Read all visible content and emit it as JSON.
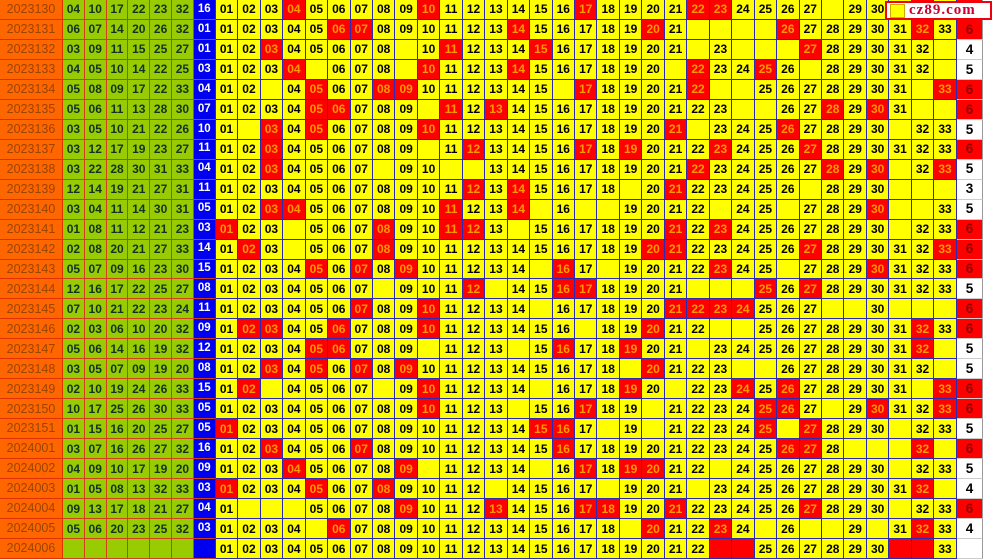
{
  "brand": {
    "logo_text": "cz89.com"
  },
  "colors": {
    "period_bg": "#ff6600",
    "period_text": "#994400",
    "ball_bg": "#99cc00",
    "ball_text": "#113322",
    "blue_bg": "#0000f0",
    "blue_text": "#ffffff",
    "grid_bg": "#ffff00",
    "grid_text": "#000000",
    "grid_border": "#2a2ab8",
    "hit_bg": "#ff0000",
    "hit_text": "#ff9900",
    "count_hot_bg": "#ff0000",
    "count_hot_text": "#8b0000",
    "left_border": "#e03000"
  },
  "chart_data": {
    "type": "table",
    "title": "",
    "number_range": [
      1,
      33
    ],
    "cell_states": {
      "n": "yellow cell showing its column number",
      "red": "red cell (number drawn this period, orange digits)",
      "blank": "empty yellow cell (marked miss)",
      "red_blank": "empty red cell (pending-draw row marker)"
    },
    "rows": [
      {
        "period": "2023130",
        "balls": [
          "04",
          "10",
          "17",
          "22",
          "23",
          "32"
        ],
        "blue": "16",
        "reds": [
          4,
          10,
          17,
          22,
          23,
          32
        ],
        "blanks": [
          28
        ],
        "red_blanks": [],
        "count": "6",
        "count_red": true
      },
      {
        "period": "2023131",
        "balls": [
          "06",
          "07",
          "14",
          "20",
          "26",
          "32"
        ],
        "blue": "01",
        "reds": [
          6,
          7,
          14,
          20,
          26,
          32
        ],
        "blanks": [
          22,
          23,
          24,
          25
        ],
        "red_blanks": [],
        "count": "6",
        "count_red": true
      },
      {
        "period": "2023132",
        "balls": [
          "03",
          "09",
          "11",
          "15",
          "25",
          "27"
        ],
        "blue": "01",
        "reds": [
          3,
          11,
          15,
          27
        ],
        "blanks": [
          9,
          22,
          24,
          25,
          26,
          33
        ],
        "red_blanks": [],
        "count": "4",
        "count_red": false
      },
      {
        "period": "2023133",
        "balls": [
          "04",
          "05",
          "10",
          "14",
          "22",
          "25"
        ],
        "blue": "03",
        "reds": [
          4,
          10,
          14,
          22,
          25
        ],
        "blanks": [
          5,
          9,
          21,
          27,
          33
        ],
        "red_blanks": [],
        "count": "5",
        "count_red": false
      },
      {
        "period": "2023134",
        "balls": [
          "05",
          "08",
          "09",
          "17",
          "22",
          "33"
        ],
        "blue": "04",
        "reds": [
          5,
          8,
          9,
          17,
          22,
          33
        ],
        "blanks": [
          3,
          16,
          23,
          24,
          32
        ],
        "red_blanks": [],
        "count": "6",
        "count_red": true
      },
      {
        "period": "2023135",
        "balls": [
          "05",
          "06",
          "11",
          "13",
          "28",
          "30"
        ],
        "blue": "07",
        "reds": [
          5,
          6,
          11,
          13,
          28,
          30
        ],
        "blanks": [
          10,
          24,
          25,
          32,
          33
        ],
        "red_blanks": [],
        "count": "6",
        "count_red": true
      },
      {
        "period": "2023136",
        "balls": [
          "03",
          "05",
          "10",
          "21",
          "22",
          "26"
        ],
        "blue": "10",
        "reds": [
          3,
          5,
          10,
          21,
          26
        ],
        "blanks": [
          2,
          22,
          31
        ],
        "red_blanks": [],
        "count": "5",
        "count_red": false
      },
      {
        "period": "2023137",
        "balls": [
          "03",
          "12",
          "17",
          "19",
          "23",
          "27"
        ],
        "blue": "11",
        "reds": [
          3,
          12,
          17,
          19,
          23,
          27
        ],
        "blanks": [
          10
        ],
        "red_blanks": [],
        "count": "6",
        "count_red": true
      },
      {
        "period": "2023138",
        "balls": [
          "03",
          "22",
          "28",
          "30",
          "31",
          "33"
        ],
        "blue": "04",
        "reds": [
          3,
          22,
          28,
          30,
          33
        ],
        "blanks": [
          8,
          11,
          12,
          31
        ],
        "red_blanks": [],
        "count": "5",
        "count_red": false
      },
      {
        "period": "2023139",
        "balls": [
          "12",
          "14",
          "19",
          "21",
          "27",
          "31"
        ],
        "blue": "11",
        "reds": [
          12,
          14,
          21
        ],
        "blanks": [
          19,
          27,
          31,
          32,
          33
        ],
        "red_blanks": [],
        "count": "3",
        "count_red": false
      },
      {
        "period": "2023140",
        "balls": [
          "03",
          "04",
          "11",
          "14",
          "30",
          "31"
        ],
        "blue": "05",
        "reds": [
          3,
          4,
          11,
          14,
          30
        ],
        "blanks": [
          15,
          17,
          18,
          23,
          26,
          31,
          32
        ],
        "red_blanks": [],
        "count": "5",
        "count_red": false
      },
      {
        "period": "2023141",
        "balls": [
          "01",
          "08",
          "11",
          "12",
          "21",
          "23"
        ],
        "blue": "03",
        "reds": [
          1,
          8,
          11,
          12,
          21,
          23
        ],
        "blanks": [
          4,
          14,
          31
        ],
        "red_blanks": [],
        "count": "6",
        "count_red": true
      },
      {
        "period": "2023142",
        "balls": [
          "02",
          "08",
          "20",
          "21",
          "27",
          "33"
        ],
        "blue": "14",
        "reds": [
          2,
          8,
          20,
          21,
          27,
          33
        ],
        "blanks": [
          4
        ],
        "red_blanks": [],
        "count": "6",
        "count_red": true
      },
      {
        "period": "2023143",
        "balls": [
          "05",
          "07",
          "09",
          "16",
          "23",
          "30"
        ],
        "blue": "15",
        "reds": [
          5,
          7,
          9,
          16,
          23,
          30
        ],
        "blanks": [
          15,
          18,
          26
        ],
        "red_blanks": [],
        "count": "6",
        "count_red": true
      },
      {
        "period": "2023144",
        "balls": [
          "12",
          "16",
          "17",
          "22",
          "25",
          "27"
        ],
        "blue": "08",
        "reds": [
          12,
          16,
          17,
          25,
          27
        ],
        "blanks": [
          8,
          13,
          22,
          23,
          24
        ],
        "red_blanks": [],
        "count": "5",
        "count_red": false
      },
      {
        "period": "2023145",
        "balls": [
          "07",
          "10",
          "21",
          "22",
          "23",
          "24"
        ],
        "blue": "11",
        "reds": [
          7,
          10,
          21,
          22,
          23,
          24
        ],
        "blanks": [
          15,
          28,
          29,
          31,
          32,
          33
        ],
        "red_blanks": [],
        "count": "6",
        "count_red": true
      },
      {
        "period": "2023146",
        "balls": [
          "02",
          "03",
          "06",
          "10",
          "20",
          "32"
        ],
        "blue": "09",
        "reds": [
          2,
          3,
          6,
          10,
          20,
          32
        ],
        "blanks": [
          17,
          23,
          24
        ],
        "red_blanks": [],
        "count": "6",
        "count_red": true
      },
      {
        "period": "2023147",
        "balls": [
          "05",
          "06",
          "14",
          "16",
          "19",
          "32"
        ],
        "blue": "12",
        "reds": [
          5,
          6,
          16,
          19,
          32
        ],
        "blanks": [
          10,
          14,
          22,
          33
        ],
        "red_blanks": [],
        "count": "5",
        "count_red": false
      },
      {
        "period": "2023148",
        "balls": [
          "03",
          "05",
          "07",
          "09",
          "19",
          "20"
        ],
        "blue": "08",
        "reds": [
          3,
          5,
          7,
          9,
          20
        ],
        "blanks": [
          19,
          24,
          25,
          33
        ],
        "red_blanks": [],
        "count": "5",
        "count_red": false
      },
      {
        "period": "2023149",
        "balls": [
          "02",
          "10",
          "19",
          "24",
          "26",
          "33"
        ],
        "blue": "15",
        "reds": [
          2,
          10,
          19,
          24,
          26,
          33
        ],
        "blanks": [
          3,
          8,
          15,
          21,
          32
        ],
        "red_blanks": [],
        "count": "6",
        "count_red": true
      },
      {
        "period": "2023150",
        "balls": [
          "10",
          "17",
          "25",
          "26",
          "30",
          "33"
        ],
        "blue": "05",
        "reds": [
          10,
          17,
          25,
          26,
          30,
          33
        ],
        "blanks": [
          14,
          20,
          28
        ],
        "red_blanks": [],
        "count": "6",
        "count_red": true
      },
      {
        "period": "2023151",
        "balls": [
          "01",
          "15",
          "16",
          "20",
          "25",
          "27"
        ],
        "blue": "05",
        "reds": [
          1,
          15,
          16,
          25,
          27
        ],
        "blanks": [
          18,
          20,
          26,
          31
        ],
        "red_blanks": [],
        "count": "5",
        "count_red": false
      },
      {
        "period": "2024001",
        "balls": [
          "03",
          "07",
          "16",
          "26",
          "27",
          "32"
        ],
        "blue": "16",
        "reds": [
          3,
          7,
          16,
          26,
          27,
          32
        ],
        "blanks": [
          29,
          30,
          31,
          33
        ],
        "red_blanks": [],
        "count": "6",
        "count_red": true
      },
      {
        "period": "2024002",
        "balls": [
          "04",
          "09",
          "10",
          "17",
          "19",
          "20"
        ],
        "blue": "09",
        "reds": [
          4,
          9,
          17,
          19,
          20
        ],
        "blanks": [
          10,
          15,
          23,
          31
        ],
        "red_blanks": [],
        "count": "5",
        "count_red": false
      },
      {
        "period": "2024003",
        "balls": [
          "01",
          "05",
          "08",
          "13",
          "32",
          "33"
        ],
        "blue": "03",
        "reds": [
          1,
          5,
          8,
          32
        ],
        "blanks": [
          13,
          18,
          22,
          33
        ],
        "red_blanks": [],
        "count": "4",
        "count_red": false
      },
      {
        "period": "2024004",
        "balls": [
          "09",
          "13",
          "17",
          "18",
          "21",
          "27"
        ],
        "blue": "04",
        "reds": [
          9,
          13,
          17,
          18,
          21,
          27
        ],
        "blanks": [
          2,
          3,
          4,
          31
        ],
        "red_blanks": [],
        "count": "6",
        "count_red": true
      },
      {
        "period": "2024005",
        "balls": [
          "05",
          "06",
          "20",
          "23",
          "25",
          "32"
        ],
        "blue": "03",
        "reds": [
          6,
          20,
          23,
          32
        ],
        "blanks": [
          5,
          19,
          25,
          27,
          28,
          30
        ],
        "red_blanks": [],
        "count": "4",
        "count_red": false
      },
      {
        "period": "2024006",
        "balls": [
          "",
          "",
          "",
          "",
          "",
          ""
        ],
        "blue": "",
        "reds": [],
        "blanks": [],
        "red_blanks": [
          23,
          24,
          31,
          32
        ],
        "count": "",
        "count_red": false
      }
    ]
  }
}
